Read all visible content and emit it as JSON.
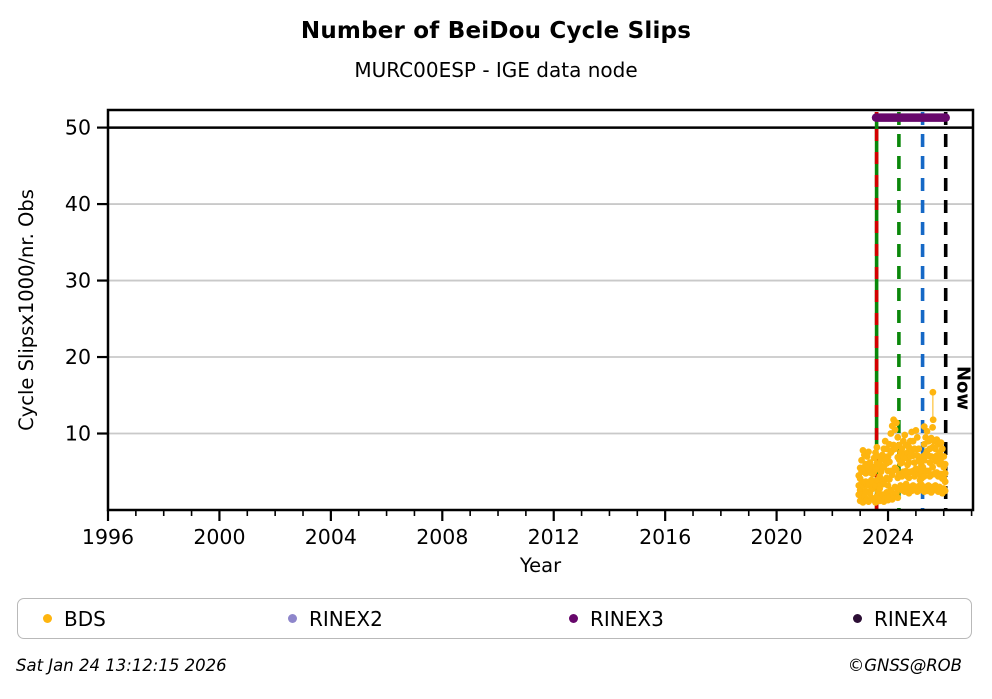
{
  "header": {
    "title": "Number of BeiDou Cycle Slips",
    "subtitle": "MURC00ESP - IGE data node"
  },
  "footer": {
    "timestamp": "Sat Jan 24 13:12:15 2026",
    "credit": "©GNSS@ROB"
  },
  "legend": [
    {
      "label": "BDS",
      "color": "#feb50f"
    },
    {
      "label": "RINEX2",
      "color": "#8e86cb"
    },
    {
      "label": "RINEX3",
      "color": "#67076b"
    },
    {
      "label": "RINEX4",
      "color": "#2c0e35"
    }
  ],
  "chart_data": {
    "type": "scatter",
    "title": "Number of BeiDou Cycle Slips",
    "subtitle": "MURC00ESP - IGE data node",
    "xlabel": "Year",
    "ylabel": "Cycle Slipsx1000/nr. Obs",
    "xlim": [
      1996,
      2027.05
    ],
    "ylim": [
      0,
      52.3
    ],
    "xticks": [
      1996,
      2000,
      2004,
      2008,
      2012,
      2016,
      2020,
      2024
    ],
    "xticks_minor_step": 1,
    "yticks": [
      10,
      20,
      30,
      40,
      50
    ],
    "grid": {
      "y_values": [
        10,
        20,
        30,
        40,
        50
      ],
      "color": "#c9c9c9"
    },
    "clip_line": {
      "y": 50,
      "color": "#000000"
    },
    "availability_bars": [
      {
        "name": "RINEX3",
        "y": 51.3,
        "x_start": 2023.57,
        "x_end": 2026.07,
        "color": "#67076b"
      }
    ],
    "event_lines": [
      {
        "x": 2023.59,
        "style": "solid",
        "color": "#0a870a",
        "overlay_color": "#d40000",
        "name": "event-line-green-red"
      },
      {
        "x": 2024.39,
        "style": "dashed",
        "color": "#0a870a",
        "name": "event-line-green"
      },
      {
        "x": 2025.24,
        "style": "dashed",
        "color": "#1568c6",
        "name": "event-line-blue"
      },
      {
        "x": 2026.07,
        "style": "dashed",
        "color": "#000000",
        "label": "Now",
        "name": "event-line-now"
      }
    ],
    "series": [
      {
        "name": "BDS",
        "color": "#feb50f",
        "connector": [
          [
            2025.61,
            15.4
          ],
          [
            2025.61,
            11.9
          ]
        ],
        "points": [
          [
            2022.95,
            2.0
          ],
          [
            2022.95,
            3.2
          ],
          [
            2022.95,
            4.5
          ],
          [
            2023.0,
            1.2
          ],
          [
            2023.0,
            2.6
          ],
          [
            2023.0,
            4.1
          ],
          [
            2023.0,
            5.5
          ],
          [
            2023.05,
            2.0
          ],
          [
            2023.05,
            3.5
          ],
          [
            2023.05,
            5.0
          ],
          [
            2023.05,
            6.5
          ],
          [
            2023.1,
            1.0
          ],
          [
            2023.1,
            3.2
          ],
          [
            2023.1,
            5.5
          ],
          [
            2023.1,
            7.8
          ],
          [
            2023.15,
            1.8
          ],
          [
            2023.15,
            3.6
          ],
          [
            2023.15,
            5.4
          ],
          [
            2023.15,
            7.2
          ],
          [
            2023.2,
            2.5
          ],
          [
            2023.2,
            3.7
          ],
          [
            2023.2,
            4.8
          ],
          [
            2023.2,
            6.0
          ],
          [
            2023.25,
            1.4
          ],
          [
            2023.25,
            3.3
          ],
          [
            2023.25,
            5.1
          ],
          [
            2023.25,
            7.0
          ],
          [
            2023.3,
            1.1
          ],
          [
            2023.3,
            3.3
          ],
          [
            2023.3,
            5.4
          ],
          [
            2023.3,
            7.6
          ],
          [
            2023.35,
            2.2
          ],
          [
            2023.35,
            3.5
          ],
          [
            2023.35,
            4.9
          ],
          [
            2023.35,
            6.2
          ],
          [
            2023.4,
            1.6
          ],
          [
            2023.4,
            2.7
          ],
          [
            2023.4,
            3.9
          ],
          [
            2023.4,
            5.0
          ],
          [
            2023.45,
            2.8
          ],
          [
            2023.45,
            3.7
          ],
          [
            2023.45,
            4.7
          ],
          [
            2023.45,
            5.6
          ],
          [
            2023.5,
            1.3
          ],
          [
            2023.5,
            3.1
          ],
          [
            2023.5,
            5.0
          ],
          [
            2023.5,
            6.8
          ],
          [
            2023.55,
            1.0
          ],
          [
            2023.55,
            3.2
          ],
          [
            2023.55,
            5.3
          ],
          [
            2023.55,
            7.5
          ],
          [
            2023.6,
            1.8
          ],
          [
            2023.6,
            3.9
          ],
          [
            2023.6,
            6.1
          ],
          [
            2023.6,
            8.2
          ],
          [
            2023.65,
            2.4
          ],
          [
            2023.65,
            3.9
          ],
          [
            2023.65,
            5.5
          ],
          [
            2023.65,
            7.0
          ],
          [
            2023.7,
            1.2
          ],
          [
            2023.7,
            2.8
          ],
          [
            2023.7,
            4.4
          ],
          [
            2023.7,
            6.0
          ],
          [
            2023.75,
            1.6
          ],
          [
            2023.75,
            3.3
          ],
          [
            2023.75,
            5.0
          ],
          [
            2023.75,
            6.6
          ],
          [
            2023.8,
            2.0
          ],
          [
            2023.8,
            3.7
          ],
          [
            2023.8,
            5.5
          ],
          [
            2023.8,
            7.2
          ],
          [
            2023.85,
            1.1
          ],
          [
            2023.85,
            3.4
          ],
          [
            2023.85,
            5.7
          ],
          [
            2023.85,
            8.0
          ],
          [
            2023.9,
            1.5
          ],
          [
            2023.9,
            4.0
          ],
          [
            2023.9,
            6.5
          ],
          [
            2023.9,
            9.0
          ],
          [
            2023.95,
            2.3
          ],
          [
            2023.95,
            4.2
          ],
          [
            2023.95,
            6.1
          ],
          [
            2023.95,
            8.0
          ],
          [
            2024.0,
            1.3
          ],
          [
            2024.0,
            3.2
          ],
          [
            2024.0,
            5.1
          ],
          [
            2024.0,
            7.0
          ],
          [
            2024.05,
            1.8
          ],
          [
            2024.05,
            4.0
          ],
          [
            2024.05,
            6.3
          ],
          [
            2024.05,
            8.6
          ],
          [
            2024.1,
            2.6
          ],
          [
            2024.1,
            5.1
          ],
          [
            2024.1,
            7.5
          ],
          [
            2024.1,
            10.0
          ],
          [
            2024.15,
            1.4
          ],
          [
            2024.15,
            4.6
          ],
          [
            2024.15,
            7.8
          ],
          [
            2024.15,
            11.0
          ],
          [
            2024.2,
            1.9
          ],
          [
            2024.2,
            5.2
          ],
          [
            2024.2,
            8.5
          ],
          [
            2024.2,
            11.8
          ],
          [
            2024.25,
            3.0
          ],
          [
            2024.25,
            5.5
          ],
          [
            2024.25,
            8.0
          ],
          [
            2024.25,
            10.5
          ],
          [
            2024.3,
            2.2
          ],
          [
            2024.3,
            5.3
          ],
          [
            2024.3,
            8.3
          ],
          [
            2024.3,
            11.4
          ],
          [
            2024.35,
            1.6
          ],
          [
            2024.35,
            4.2
          ],
          [
            2024.35,
            6.9
          ],
          [
            2024.35,
            9.5
          ],
          [
            2024.4,
            2.8
          ],
          [
            2024.4,
            4.7
          ],
          [
            2024.4,
            6.6
          ],
          [
            2024.4,
            8.5
          ],
          [
            2024.45,
            3.2
          ],
          [
            2024.45,
            4.6
          ],
          [
            2024.45,
            6.1
          ],
          [
            2024.45,
            7.5
          ],
          [
            2024.5,
            2.6
          ],
          [
            2024.5,
            4.4
          ],
          [
            2024.5,
            6.2
          ],
          [
            2024.5,
            8.0
          ],
          [
            2024.55,
            3.0
          ],
          [
            2024.55,
            5.0
          ],
          [
            2024.55,
            7.0
          ],
          [
            2024.55,
            9.0
          ],
          [
            2024.6,
            2.4
          ],
          [
            2024.6,
            4.8
          ],
          [
            2024.6,
            7.3
          ],
          [
            2024.6,
            9.8
          ],
          [
            2024.65,
            3.4
          ],
          [
            2024.65,
            5.1
          ],
          [
            2024.65,
            6.8
          ],
          [
            2024.65,
            8.5
          ],
          [
            2024.7,
            2.8
          ],
          [
            2024.7,
            4.4
          ],
          [
            2024.7,
            5.9
          ],
          [
            2024.7,
            7.5
          ],
          [
            2024.75,
            2.2
          ],
          [
            2024.75,
            4.2
          ],
          [
            2024.75,
            6.2
          ],
          [
            2024.75,
            8.2
          ],
          [
            2024.8,
            3.0
          ],
          [
            2024.8,
            5.0
          ],
          [
            2024.8,
            7.0
          ],
          [
            2024.8,
            9.0
          ],
          [
            2024.85,
            2.5
          ],
          [
            2024.85,
            5.0
          ],
          [
            2024.85,
            7.7
          ],
          [
            2024.85,
            10.2
          ],
          [
            2024.9,
            3.2
          ],
          [
            2024.9,
            5.1
          ],
          [
            2024.9,
            7.1
          ],
          [
            2024.9,
            9.0
          ],
          [
            2024.95,
            2.7
          ],
          [
            2024.95,
            4.4
          ],
          [
            2024.95,
            6.2
          ],
          [
            2024.95,
            8.0
          ],
          [
            2025.0,
            3.0
          ],
          [
            2025.0,
            5.4
          ],
          [
            2025.0,
            7.9
          ],
          [
            2025.0,
            10.4
          ],
          [
            2025.05,
            2.4
          ],
          [
            2025.05,
            4.7
          ],
          [
            2025.05,
            7.1
          ],
          [
            2025.05,
            9.5
          ],
          [
            2025.1,
            3.1
          ],
          [
            2025.1,
            4.7
          ],
          [
            2025.1,
            6.4
          ],
          [
            2025.1,
            8.0
          ],
          [
            2025.15,
            2.6
          ],
          [
            2025.15,
            3.9
          ],
          [
            2025.15,
            5.2
          ],
          [
            2025.15,
            6.5
          ],
          [
            2025.2,
            3.3
          ],
          [
            2025.2,
            4.1
          ],
          [
            2025.2,
            5.0
          ],
          [
            2025.2,
            5.8
          ],
          [
            2025.25,
            2.9
          ],
          [
            2025.25,
            4.3
          ],
          [
            2025.25,
            5.6
          ],
          [
            2025.25,
            7.0
          ],
          [
            2025.3,
            2.4
          ],
          [
            2025.3,
            4.4
          ],
          [
            2025.3,
            6.5
          ],
          [
            2025.3,
            8.6
          ],
          [
            2025.35,
            3.0
          ],
          [
            2025.35,
            5.1
          ],
          [
            2025.35,
            7.3
          ],
          [
            2025.35,
            9.5
          ],
          [
            2025.4,
            2.5
          ],
          [
            2025.4,
            5.1
          ],
          [
            2025.4,
            7.7
          ],
          [
            2025.4,
            10.3
          ],
          [
            2025.45,
            3.2
          ],
          [
            2025.45,
            5.1
          ],
          [
            2025.45,
            7.1
          ],
          [
            2025.45,
            9.0
          ],
          [
            2025.5,
            2.7
          ],
          [
            2025.5,
            4.4
          ],
          [
            2025.5,
            6.2
          ],
          [
            2025.5,
            8.0
          ],
          [
            2025.55,
            2.3
          ],
          [
            2025.55,
            4.6
          ],
          [
            2025.55,
            7.0
          ],
          [
            2025.55,
            9.4
          ],
          [
            2025.6,
            3.0
          ],
          [
            2025.6,
            5.6
          ],
          [
            2025.6,
            8.2
          ],
          [
            2025.6,
            10.8
          ],
          [
            2025.65,
            2.6
          ],
          [
            2025.65,
            4.7
          ],
          [
            2025.65,
            6.9
          ],
          [
            2025.65,
            9.0
          ],
          [
            2025.7,
            3.2
          ],
          [
            2025.7,
            4.8
          ],
          [
            2025.7,
            6.4
          ],
          [
            2025.7,
            8.0
          ],
          [
            2025.75,
            2.8
          ],
          [
            2025.75,
            4.9
          ],
          [
            2025.75,
            7.1
          ],
          [
            2025.75,
            9.2
          ],
          [
            2025.8,
            2.4
          ],
          [
            2025.8,
            4.4
          ],
          [
            2025.8,
            6.5
          ],
          [
            2025.8,
            8.6
          ],
          [
            2025.85,
            3.0
          ],
          [
            2025.85,
            4.5
          ],
          [
            2025.85,
            6.0
          ],
          [
            2025.85,
            7.5
          ],
          [
            2025.9,
            2.6
          ],
          [
            2025.9,
            4.7
          ],
          [
            2025.9,
            6.8
          ],
          [
            2025.9,
            8.8
          ],
          [
            2025.95,
            2.2
          ],
          [
            2025.95,
            4.1
          ],
          [
            2025.95,
            6.1
          ],
          [
            2025.95,
            8.0
          ],
          [
            2026.0,
            2.8
          ],
          [
            2026.0,
            4.2
          ],
          [
            2026.0,
            5.6
          ],
          [
            2026.0,
            7.0
          ],
          [
            2026.05,
            2.5
          ],
          [
            2026.05,
            3.7
          ],
          [
            2026.05,
            4.8
          ],
          [
            2026.05,
            6.0
          ],
          [
            2025.3,
            10.9
          ],
          [
            2025.61,
            15.4
          ],
          [
            2025.62,
            11.8
          ]
        ]
      }
    ],
    "legend_entries": [
      "BDS",
      "RINEX2",
      "RINEX3",
      "RINEX4"
    ],
    "legend_position": "bottom",
    "now_label": "Now"
  }
}
